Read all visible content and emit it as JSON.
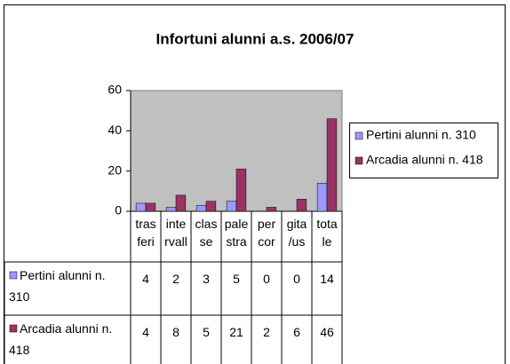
{
  "chart_data": {
    "type": "bar",
    "title": "Infortuni alunni a.s. 2006/07",
    "categories": [
      "tras feri",
      "inte rvall",
      "clas se",
      "pale stra",
      "per cor",
      "gita /us",
      "tota le"
    ],
    "series": [
      {
        "name": "Pertini alunni n. 310",
        "color": "#9999ff",
        "values": [
          4,
          2,
          3,
          5,
          0,
          0,
          14
        ]
      },
      {
        "name": "Arcadia alunni n. 418",
        "color": "#993366",
        "values": [
          4,
          8,
          5,
          21,
          2,
          6,
          46
        ]
      }
    ],
    "ylim": [
      0,
      60
    ],
    "yticks": [
      0,
      20,
      40,
      60
    ],
    "grid": false,
    "legend": "right"
  }
}
